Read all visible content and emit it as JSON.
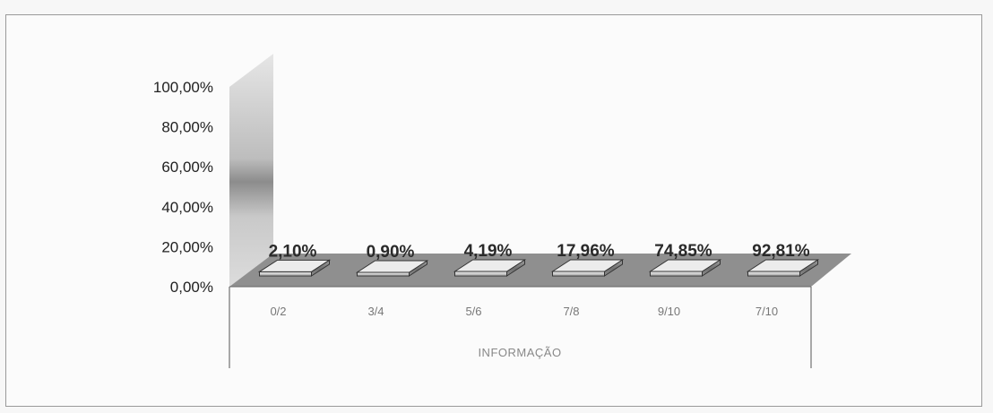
{
  "chart_data": {
    "type": "bar",
    "title": "",
    "xlabel": "INFORMAÇÃO",
    "ylabel": "",
    "categories": [
      "0/2",
      "3/4",
      "5/6",
      "7/8",
      "9/10",
      "7/10"
    ],
    "values": [
      2.1,
      0.9,
      4.19,
      17.96,
      74.85,
      92.81
    ],
    "data_labels": [
      "2,10%",
      "0,90%",
      "4,19%",
      "17,96%",
      "74,85%",
      "92,81%"
    ],
    "y_ticks": [
      "0,00%",
      "20,00%",
      "40,00%",
      "60,00%",
      "80,00%",
      "100,00%"
    ],
    "ylim": [
      0,
      100
    ],
    "grid": false,
    "legend": "none",
    "three_d": true,
    "colors": {
      "bar_front": "#dcdcdc",
      "bar_side": "#8a8a8a",
      "bar_top": "#ececec",
      "floor": "#8f8f8f",
      "wall": "#c4c4c4"
    }
  }
}
